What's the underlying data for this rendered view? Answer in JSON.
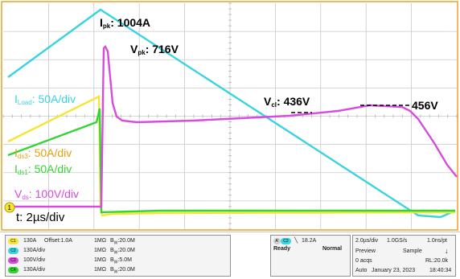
{
  "colors": {
    "grid": "#c9c9c9",
    "border": "#f0a020",
    "ch1": "#f5e633",
    "ch2": "#3ad3e0",
    "ch3": "#d94adf",
    "ch4": "#35d435",
    "ref": "#e6a00e"
  },
  "annotations": {
    "ipk_main": "I",
    "ipk_sub": "pk",
    "ipk_val": ": 1004A",
    "vpk_main": "V",
    "vpk_sub": "pk",
    "vpk_val": ": 716V",
    "iload_main": "I",
    "iload_sub": "Load",
    "iload_val": ": 50A/div",
    "vcl_main": "V",
    "vcl_sub": "cl",
    "vcl_val": ": 436V",
    "v456": "456V",
    "ids3_main": "I",
    "ids3_sub": "ds3",
    "ids3_val": ": 50A/div",
    "ids1_main": "I",
    "ids1_sub": "ds1",
    "ids1_val": ": 50A/div",
    "vds_main": "V",
    "vds_sub": "ds",
    "vds_val": ": 100V/div",
    "time": "t: 2µs/div",
    "ch1_marker": "1"
  },
  "channels": [
    {
      "badge": "C1",
      "scale": "130A",
      "offset": "Offset:1.0A",
      "imp": "1MΩ",
      "bw_b": "B",
      "bw_sub": "W",
      "bw": ":20.0M"
    },
    {
      "badge": "C2",
      "scale": "130A/div",
      "offset": "",
      "imp": "1MΩ",
      "bw_b": "B",
      "bw_sub": "W",
      "bw": ":20.0M"
    },
    {
      "badge": "C3",
      "scale": "100V/div",
      "offset": "",
      "imp": "1MΩ",
      "bw_b": "B",
      "bw_sub": "W",
      "bw": ":5.0M"
    },
    {
      "badge": "C4",
      "scale": "130A/div",
      "offset": "",
      "imp": "1MΩ",
      "bw_b": "B",
      "bw_sub": "W",
      "bw": ":20.0M"
    }
  ],
  "trigger": {
    "badge_a": "A'",
    "badge_ch": "C2",
    "level": "18.2A",
    "state": "Ready",
    "mode": "Normal"
  },
  "acquisition": {
    "timebase": "2.0µs/div",
    "sample_rate": "1.0GS/s",
    "resolution": "1.0ns/pt",
    "mode": "Preview",
    "sample": "Sample",
    "acqs": "0 acqs",
    "record_length": "RL:20.0k",
    "auto": "Auto",
    "date": "January 23, 2023",
    "time": "18:40:34"
  }
}
